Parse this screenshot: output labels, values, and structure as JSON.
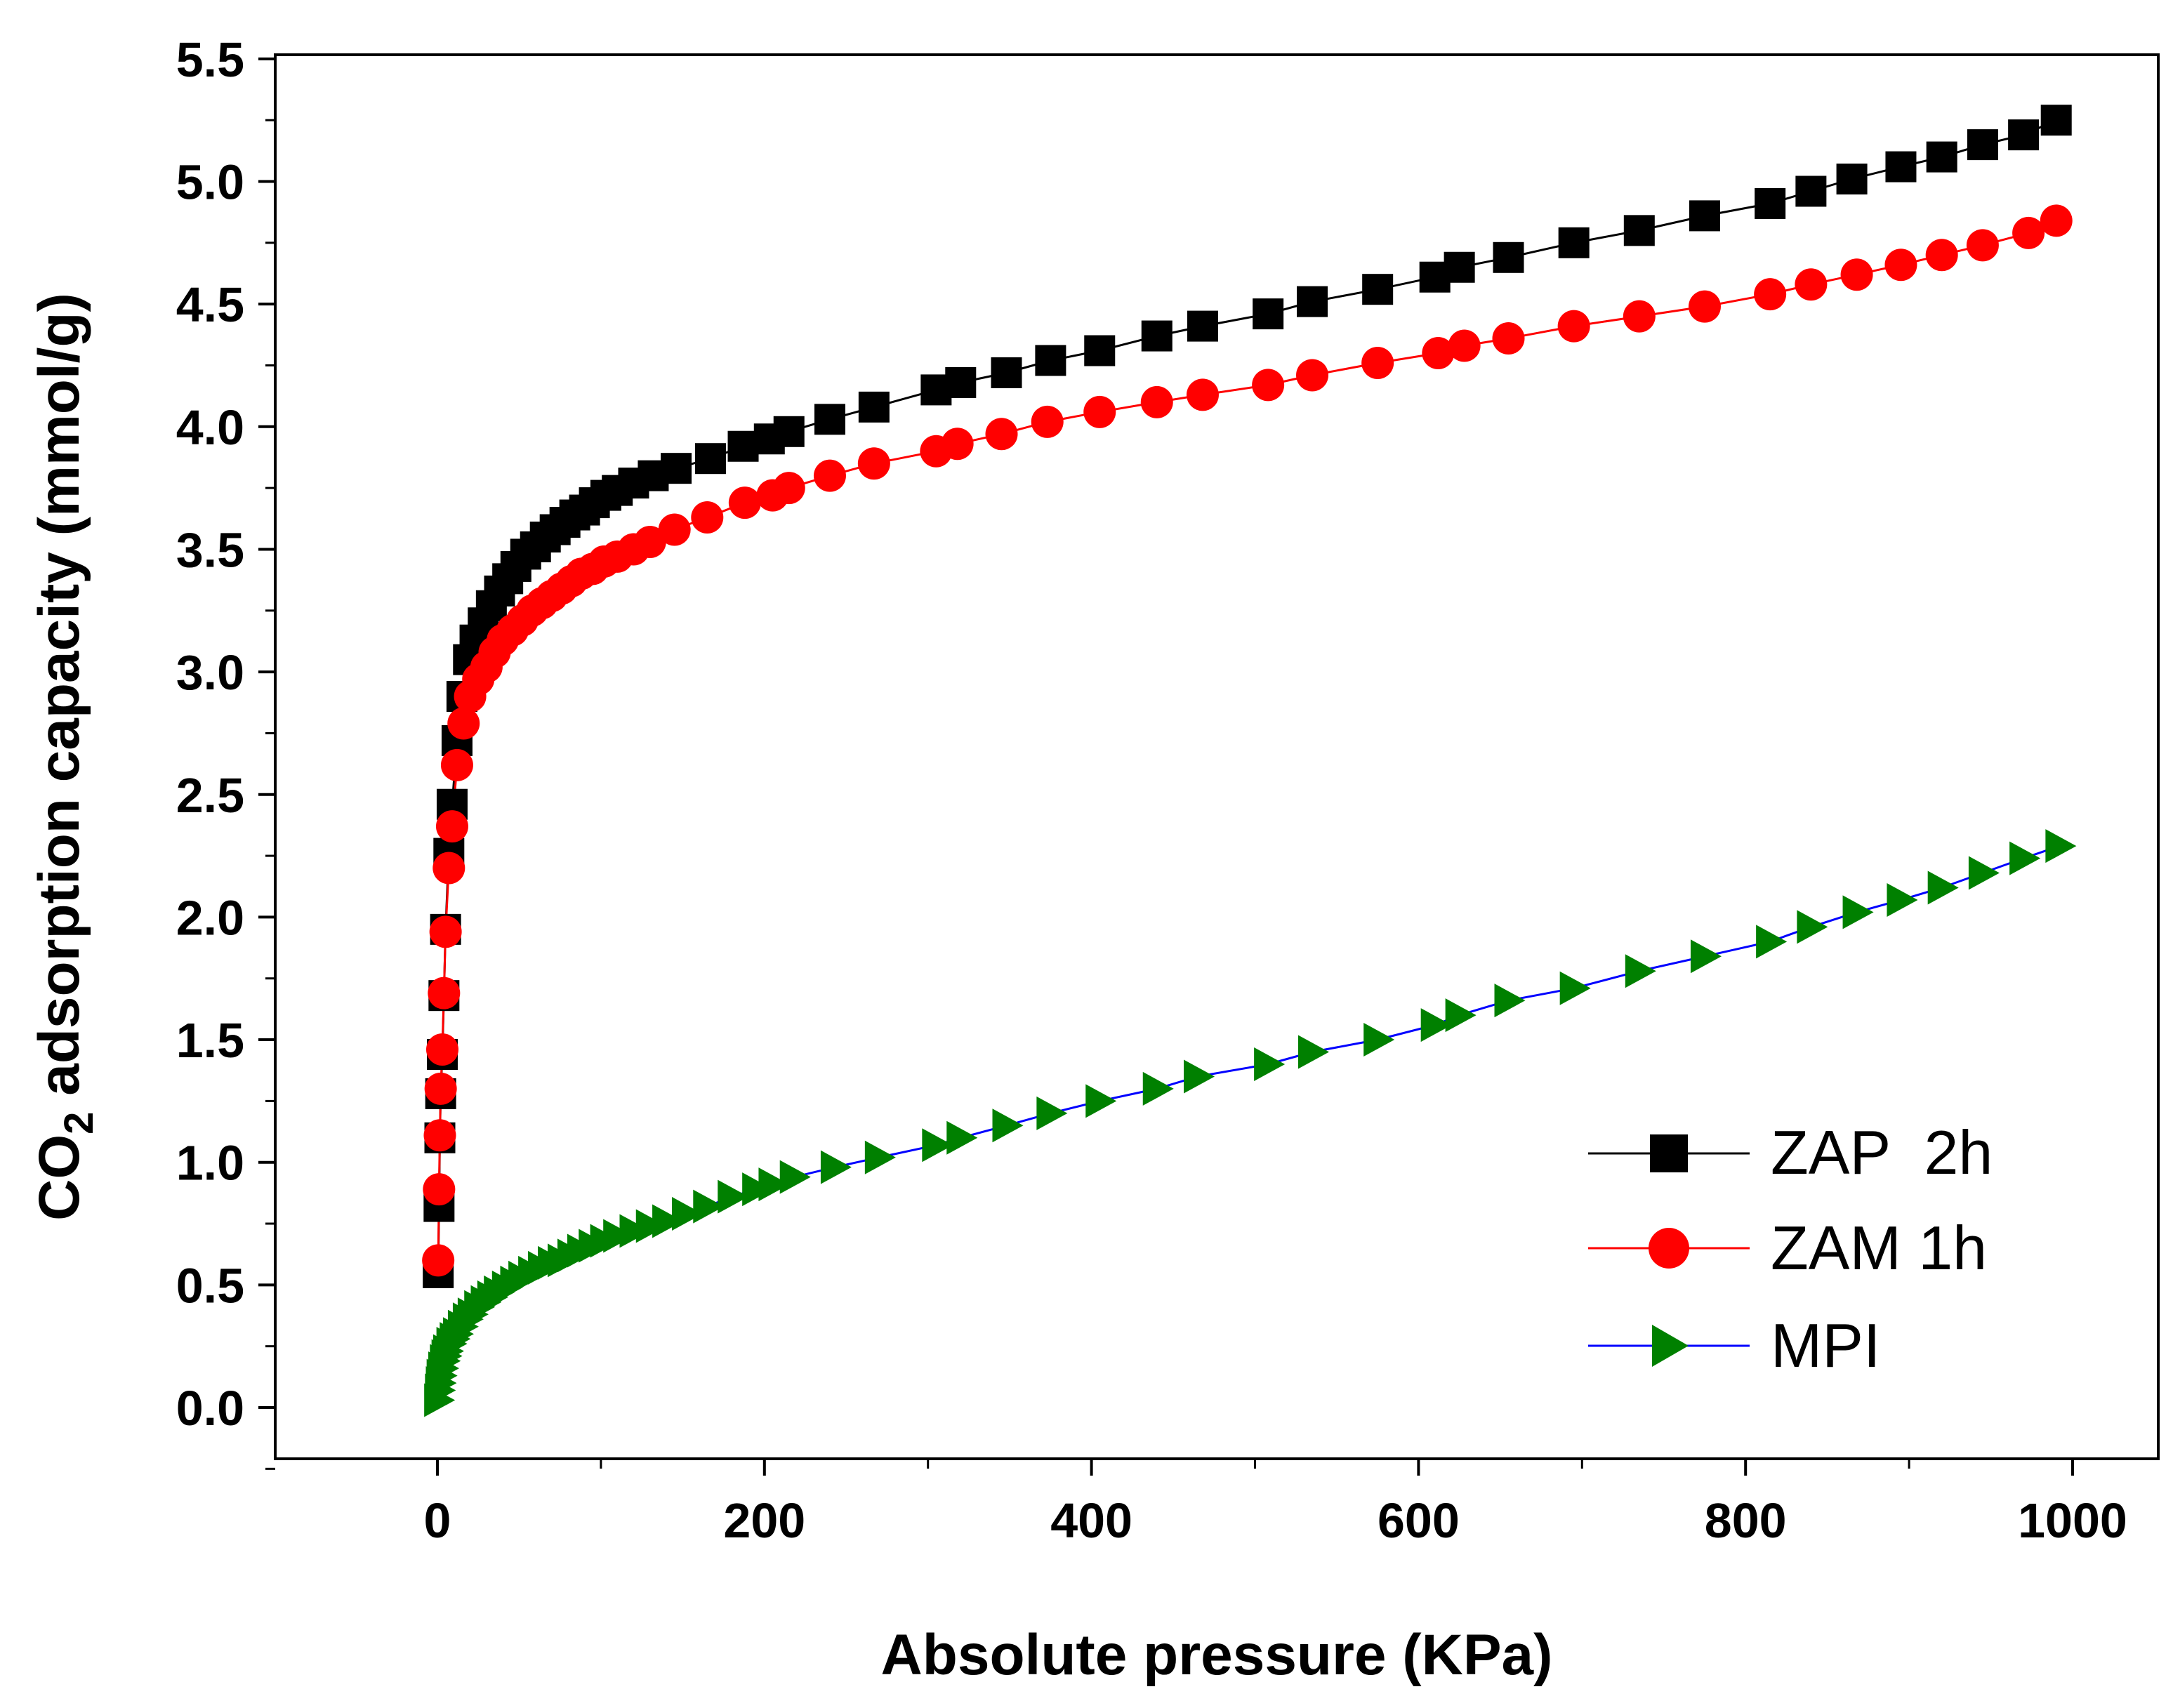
{
  "chart_data": {
    "type": "scatter",
    "xlabel": "Absolute pressure (KPa)",
    "ylabel": {
      "prefix": "CO",
      "sub": "2",
      "suffix": " adsorption capacity (mmol/g)"
    },
    "xlim": [
      -100,
      1050
    ],
    "ylim": [
      -0.2,
      5.5
    ],
    "xticks": [
      0,
      200,
      400,
      600,
      800,
      1000
    ],
    "yticks": [
      0.0,
      0.5,
      1.0,
      1.5,
      2.0,
      2.5,
      3.0,
      3.5,
      4.0,
      4.5,
      5.0,
      5.5
    ],
    "ytick_labels": [
      "0.0",
      "0.5",
      "1.0",
      "1.5",
      "2.0",
      "2.5",
      "3.0",
      "3.5",
      "4.0",
      "4.5",
      "5.0",
      "5.5"
    ],
    "legend_position": "bottom-right",
    "series": [
      {
        "name": "ZAP  2h",
        "marker": "square",
        "marker_color": "#000000",
        "line_color": "#000000",
        "x": [
          0.5,
          1,
          1.5,
          2,
          3,
          4,
          5,
          7,
          9,
          12,
          15,
          19,
          23,
          28,
          33,
          38,
          43,
          48,
          54,
          60,
          66,
          72,
          78,
          84,
          90,
          96,
          103,
          110,
          120,
          132,
          146,
          167,
          187,
          203,
          215,
          240,
          267,
          305,
          320,
          348,
          375,
          405,
          440,
          468,
          508,
          535,
          575,
          610,
          625,
          655,
          695,
          735,
          775,
          815,
          840,
          865,
          895,
          920,
          945,
          970,
          990
        ],
        "y": [
          0.55,
          0.82,
          1.1,
          1.28,
          1.44,
          1.68,
          1.95,
          2.26,
          2.46,
          2.72,
          2.9,
          3.05,
          3.13,
          3.2,
          3.27,
          3.33,
          3.38,
          3.43,
          3.48,
          3.51,
          3.55,
          3.58,
          3.61,
          3.64,
          3.66,
          3.69,
          3.72,
          3.74,
          3.77,
          3.8,
          3.83,
          3.87,
          3.92,
          3.95,
          3.98,
          4.03,
          4.08,
          4.15,
          4.18,
          4.22,
          4.27,
          4.31,
          4.37,
          4.41,
          4.46,
          4.51,
          4.56,
          4.61,
          4.65,
          4.69,
          4.75,
          4.8,
          4.86,
          4.91,
          4.96,
          5.01,
          5.06,
          5.1,
          5.15,
          5.19,
          5.25
        ]
      },
      {
        "name": "ZAM 1h",
        "marker": "circle",
        "marker_color": "#ff0000",
        "line_color": "#ff0000",
        "x": [
          0.5,
          1,
          1.5,
          2,
          3,
          4,
          5,
          7,
          9,
          12,
          16,
          20,
          25,
          30,
          35,
          40,
          46,
          52,
          58,
          64,
          70,
          76,
          82,
          88,
          95,
          102,
          110,
          120,
          130,
          145,
          165,
          188,
          205,
          215,
          240,
          267,
          305,
          318,
          345,
          373,
          405,
          440,
          468,
          508,
          535,
          575,
          612,
          628,
          655,
          695,
          735,
          775,
          815,
          840,
          868,
          895,
          920,
          945,
          973,
          990
        ],
        "y": [
          0.6,
          0.89,
          1.11,
          1.3,
          1.46,
          1.69,
          1.94,
          2.2,
          2.37,
          2.62,
          2.79,
          2.9,
          2.97,
          3.02,
          3.08,
          3.13,
          3.17,
          3.21,
          3.25,
          3.28,
          3.31,
          3.34,
          3.37,
          3.4,
          3.42,
          3.45,
          3.47,
          3.5,
          3.53,
          3.58,
          3.63,
          3.69,
          3.72,
          3.75,
          3.8,
          3.85,
          3.9,
          3.93,
          3.97,
          4.02,
          4.06,
          4.1,
          4.13,
          4.17,
          4.21,
          4.26,
          4.3,
          4.33,
          4.36,
          4.41,
          4.45,
          4.49,
          4.54,
          4.58,
          4.62,
          4.66,
          4.7,
          4.74,
          4.79,
          4.84
        ]
      },
      {
        "name": "MPI",
        "marker": "triangle-right",
        "marker_color": "#008000",
        "line_color": "#0000ff",
        "x": [
          0.5,
          1,
          1.5,
          2,
          3,
          4,
          5,
          6,
          8,
          10,
          12,
          15,
          18,
          21,
          25,
          29,
          33,
          37,
          42,
          47,
          52,
          58,
          64,
          70,
          76,
          82,
          88,
          95,
          102,
          110,
          120,
          130,
          140,
          152,
          165,
          180,
          195,
          205,
          218,
          243,
          270,
          305,
          320,
          348,
          375,
          405,
          440,
          465,
          508,
          535,
          575,
          610,
          625,
          655,
          695,
          735,
          775,
          815,
          840,
          868,
          895,
          920,
          945,
          970,
          992
        ],
        "y": [
          0.03,
          0.07,
          0.1,
          0.13,
          0.16,
          0.19,
          0.21,
          0.23,
          0.26,
          0.28,
          0.3,
          0.33,
          0.36,
          0.38,
          0.41,
          0.43,
          0.45,
          0.47,
          0.49,
          0.51,
          0.53,
          0.55,
          0.57,
          0.59,
          0.6,
          0.62,
          0.64,
          0.66,
          0.68,
          0.7,
          0.72,
          0.74,
          0.76,
          0.79,
          0.82,
          0.86,
          0.89,
          0.91,
          0.94,
          0.98,
          1.02,
          1.07,
          1.1,
          1.15,
          1.2,
          1.25,
          1.3,
          1.35,
          1.4,
          1.45,
          1.5,
          1.56,
          1.6,
          1.66,
          1.71,
          1.78,
          1.84,
          1.9,
          1.96,
          2.02,
          2.07,
          2.12,
          2.18,
          2.24,
          2.29
        ]
      }
    ]
  }
}
